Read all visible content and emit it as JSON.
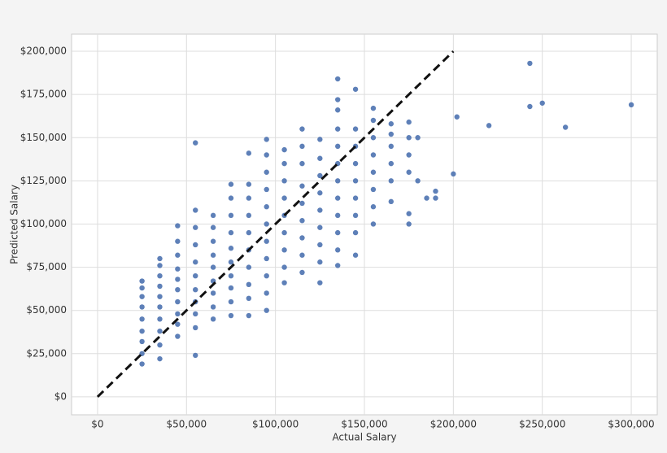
{
  "chart_data": {
    "type": "scatter",
    "xlabel": "Actual Salary",
    "ylabel": "Predicted Salary",
    "xlim": [
      -14600,
      314600
    ],
    "ylim": [
      -10400,
      209900
    ],
    "xticks": [
      {
        "value": 0,
        "label": "$0"
      },
      {
        "value": 50000,
        "label": "$50,000"
      },
      {
        "value": 100000,
        "label": "$100,000"
      },
      {
        "value": 150000,
        "label": "$150,000"
      },
      {
        "value": 200000,
        "label": "$200,000"
      },
      {
        "value": 250000,
        "label": "$250,000"
      },
      {
        "value": 300000,
        "label": "$300,000"
      }
    ],
    "yticks": [
      {
        "value": 0,
        "label": "$0"
      },
      {
        "value": 25000,
        "label": "$25,000"
      },
      {
        "value": 50000,
        "label": "$50,000"
      },
      {
        "value": 75000,
        "label": "$75,000"
      },
      {
        "value": 100000,
        "label": "$100,000"
      },
      {
        "value": 125000,
        "label": "$125,000"
      },
      {
        "value": 150000,
        "label": "$150,000"
      },
      {
        "value": 175000,
        "label": "$175,000"
      },
      {
        "value": 200000,
        "label": "$200,000"
      }
    ],
    "grid": true,
    "reference_line": {
      "color": "#111111",
      "x": [
        0,
        200000
      ],
      "y": [
        0,
        200000
      ]
    },
    "series": [
      {
        "color": "#4c72b0",
        "x": [
          25000,
          25000,
          25000,
          25000,
          25000,
          25000,
          25000,
          25000,
          25000,
          35000,
          35000,
          35000,
          35000,
          35000,
          35000,
          35000,
          35000,
          35000,
          35000,
          45000,
          45000,
          45000,
          45000,
          45000,
          45000,
          45000,
          45000,
          45000,
          45000,
          55000,
          55000,
          55000,
          55000,
          55000,
          55000,
          55000,
          55000,
          55000,
          55000,
          55000,
          65000,
          65000,
          65000,
          65000,
          65000,
          65000,
          65000,
          65000,
          65000,
          75000,
          75000,
          75000,
          75000,
          75000,
          75000,
          75000,
          75000,
          75000,
          75000,
          85000,
          85000,
          85000,
          85000,
          85000,
          85000,
          85000,
          85000,
          85000,
          85000,
          95000,
          95000,
          95000,
          95000,
          95000,
          95000,
          95000,
          95000,
          95000,
          95000,
          95000,
          105000,
          105000,
          105000,
          105000,
          105000,
          105000,
          105000,
          105000,
          105000,
          115000,
          115000,
          115000,
          115000,
          115000,
          115000,
          115000,
          115000,
          115000,
          125000,
          125000,
          125000,
          125000,
          125000,
          125000,
          125000,
          125000,
          125000,
          135000,
          135000,
          135000,
          135000,
          135000,
          135000,
          135000,
          135000,
          135000,
          135000,
          135000,
          135000,
          145000,
          145000,
          145000,
          145000,
          145000,
          145000,
          145000,
          145000,
          145000,
          155000,
          155000,
          155000,
          155000,
          155000,
          155000,
          155000,
          155000,
          165000,
          165000,
          165000,
          165000,
          165000,
          165000,
          175000,
          175000,
          175000,
          175000,
          175000,
          175000,
          180000,
          180000,
          185000,
          190000,
          190000,
          200000,
          202000,
          220000,
          243000,
          243000,
          250000,
          263000,
          300000
        ],
        "y": [
          19000,
          25000,
          32000,
          38000,
          45000,
          52000,
          58000,
          63000,
          67000,
          22000,
          30000,
          38000,
          45000,
          52000,
          58000,
          64000,
          70000,
          76000,
          80000,
          35000,
          42000,
          48000,
          55000,
          62000,
          68000,
          74000,
          82000,
          90000,
          99000,
          24000,
          40000,
          48000,
          55000,
          62000,
          70000,
          78000,
          88000,
          98000,
          108000,
          147000,
          45000,
          52000,
          60000,
          67000,
          75000,
          82000,
          90000,
          98000,
          105000,
          47000,
          55000,
          63000,
          70000,
          78000,
          86000,
          95000,
          105000,
          115000,
          123000,
          47000,
          57000,
          65000,
          75000,
          85000,
          95000,
          105000,
          115000,
          123000,
          141000,
          50000,
          60000,
          70000,
          80000,
          90000,
          100000,
          110000,
          120000,
          130000,
          140000,
          149000,
          66000,
          75000,
          85000,
          95000,
          105000,
          115000,
          125000,
          135000,
          143000,
          72000,
          82000,
          92000,
          102000,
          112000,
          122000,
          135000,
          145000,
          155000,
          66000,
          78000,
          88000,
          98000,
          108000,
          118000,
          128000,
          138000,
          149000,
          76000,
          85000,
          95000,
          105000,
          115000,
          125000,
          135000,
          145000,
          155000,
          166000,
          172000,
          184000,
          82000,
          95000,
          105000,
          115000,
          125000,
          135000,
          145000,
          155000,
          178000,
          100000,
          110000,
          120000,
          130000,
          140000,
          150000,
          160000,
          167000,
          113000,
          125000,
          135000,
          145000,
          152000,
          158000,
          100000,
          106000,
          130000,
          140000,
          150000,
          159000,
          125000,
          150000,
          115000,
          115000,
          119000,
          129000,
          162000,
          157000,
          193000,
          168000,
          170000,
          156000,
          169000
        ]
      }
    ]
  }
}
